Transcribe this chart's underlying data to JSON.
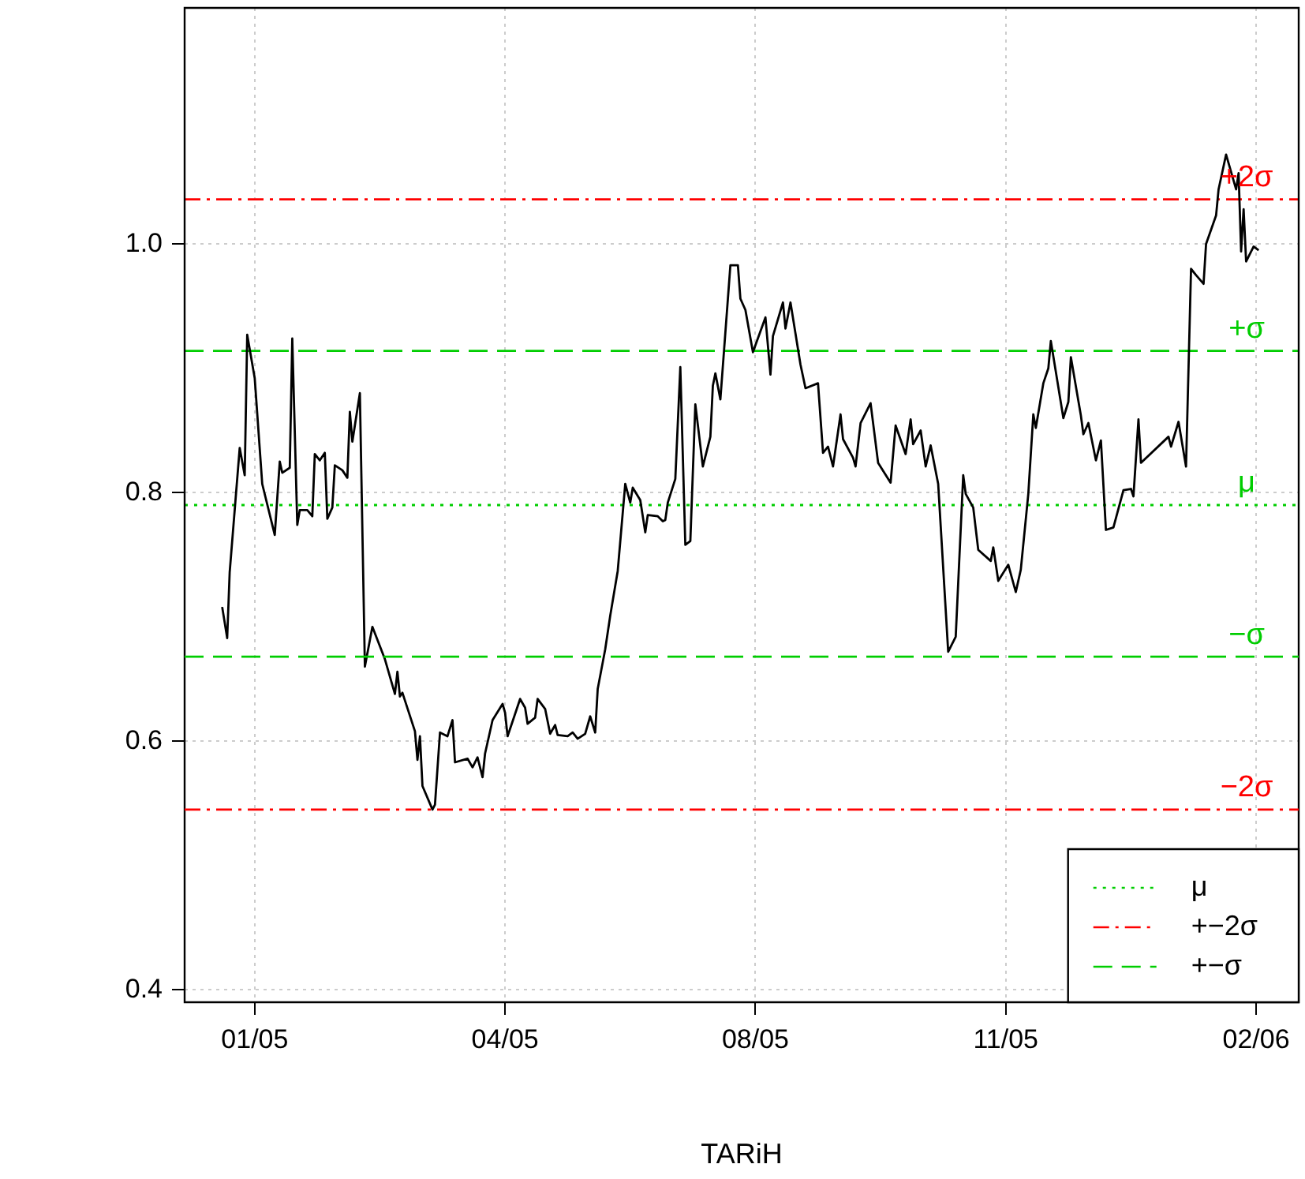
{
  "chart_data": {
    "type": "line",
    "xlabel": "TARiH",
    "xlim": [
      "2004-12-18",
      "2006-03-08"
    ],
    "ylim": [
      0.39,
      1.19
    ],
    "xticks": [
      {
        "value": "2005-01-15",
        "label": "01/05"
      },
      {
        "value": "2005-04-25",
        "label": "04/05"
      },
      {
        "value": "2005-08-03",
        "label": "08/05"
      },
      {
        "value": "2005-11-11",
        "label": "11/05"
      },
      {
        "value": "2006-02-19",
        "label": "02/06"
      }
    ],
    "yticks": [
      0.4,
      0.6,
      0.8,
      {
        "value": 1.0,
        "label": "1.0"
      }
    ],
    "grid": true,
    "legend": "bottom right",
    "marker": "none",
    "series": [
      {
        "color": "#000000",
        "line_style": "solid",
        "x": [
          "2005-01-02",
          "2005-01-04",
          "2005-01-05",
          "2005-01-09",
          "2005-01-11",
          "2005-01-12",
          "2005-01-15",
          "2005-01-18",
          "2005-01-23",
          "2005-01-25",
          "2005-01-26",
          "2005-01-29",
          "2005-01-30",
          "2005-02-01",
          "2005-02-02",
          "2005-02-05",
          "2005-02-07",
          "2005-02-08",
          "2005-02-10",
          "2005-02-12",
          "2005-02-13",
          "2005-02-15",
          "2005-02-16",
          "2005-02-19",
          "2005-02-21",
          "2005-02-22",
          "2005-02-23",
          "2005-02-26",
          "2005-02-28",
          "2005-03-03",
          "2005-03-08",
          "2005-03-12",
          "2005-03-13",
          "2005-03-14",
          "2005-03-15",
          "2005-03-20",
          "2005-03-21",
          "2005-03-22",
          "2005-03-23",
          "2005-03-27",
          "2005-03-28",
          "2005-03-30",
          "2005-04-02",
          "2005-04-04",
          "2005-04-05",
          "2005-04-10",
          "2005-04-12",
          "2005-04-14",
          "2005-04-16",
          "2005-04-17",
          "2005-04-20",
          "2005-04-24",
          "2005-04-25",
          "2005-04-26",
          "2005-05-01",
          "2005-05-03",
          "2005-05-04",
          "2005-05-07",
          "2005-05-08",
          "2005-05-11",
          "2005-05-13",
          "2005-05-15",
          "2005-05-16",
          "2005-05-20",
          "2005-05-22",
          "2005-05-24",
          "2005-05-27",
          "2005-05-29",
          "2005-05-31",
          "2005-06-01",
          "2005-06-04",
          "2005-06-06",
          "2005-06-09",
          "2005-06-12",
          "2005-06-14",
          "2005-06-15",
          "2005-06-18",
          "2005-06-20",
          "2005-06-21",
          "2005-06-25",
          "2005-06-27",
          "2005-06-28",
          "2005-06-29",
          "2005-07-02",
          "2005-07-04",
          "2005-07-06",
          "2005-07-08",
          "2005-07-10",
          "2005-07-13",
          "2005-07-16",
          "2005-07-17",
          "2005-07-18",
          "2005-07-20",
          "2005-07-23",
          "2005-07-24",
          "2005-07-27",
          "2005-07-28",
          "2005-07-30",
          "2005-08-02",
          "2005-08-07",
          "2005-08-09",
          "2005-08-10",
          "2005-08-14",
          "2005-08-15",
          "2005-08-17",
          "2005-08-21",
          "2005-08-23",
          "2005-08-28",
          "2005-08-30",
          "2005-09-01",
          "2005-09-03",
          "2005-09-06",
          "2005-09-07",
          "2005-09-11",
          "2005-09-12",
          "2005-09-14",
          "2005-09-18",
          "2005-09-21",
          "2005-09-26",
          "2005-09-28",
          "2005-10-02",
          "2005-10-04",
          "2005-10-05",
          "2005-10-08",
          "2005-10-10",
          "2005-10-12",
          "2005-10-15",
          "2005-10-19",
          "2005-10-22",
          "2005-10-25",
          "2005-10-26",
          "2005-10-29",
          "2005-10-31",
          "2005-11-05",
          "2005-11-06",
          "2005-11-08",
          "2005-11-12",
          "2005-11-15",
          "2005-11-17",
          "2005-11-20",
          "2005-11-22",
          "2005-11-23",
          "2005-11-26",
          "2005-11-28",
          "2005-11-29",
          "2005-12-04",
          "2005-12-06",
          "2005-12-07",
          "2005-12-11",
          "2005-12-12",
          "2005-12-14",
          "2005-12-17",
          "2005-12-19",
          "2005-12-21",
          "2005-12-24",
          "2005-12-28",
          "2005-12-31",
          "2006-01-01",
          "2006-01-03",
          "2006-01-04",
          "2006-01-15",
          "2006-01-16",
          "2006-01-19",
          "2006-01-22",
          "2006-01-24",
          "2006-01-26",
          "2006-01-29",
          "2006-01-30",
          "2006-02-03",
          "2006-02-04",
          "2006-02-07",
          "2006-02-11",
          "2006-02-12",
          "2006-02-13",
          "2006-02-14",
          "2006-02-15",
          "2006-02-18",
          "2006-02-20"
        ],
        "values": [
          0.708,
          0.683,
          0.736,
          0.836,
          0.814,
          0.927,
          0.892,
          0.807,
          0.766,
          0.825,
          0.816,
          0.82,
          0.924,
          0.774,
          0.786,
          0.786,
          0.781,
          0.831,
          0.826,
          0.832,
          0.779,
          0.788,
          0.822,
          0.818,
          0.812,
          0.865,
          0.841,
          0.88,
          0.66,
          0.692,
          0.666,
          0.638,
          0.656,
          0.636,
          0.639,
          0.608,
          0.585,
          0.604,
          0.564,
          0.545,
          0.549,
          0.607,
          0.604,
          0.617,
          0.583,
          0.586,
          0.579,
          0.587,
          0.571,
          0.59,
          0.617,
          0.63,
          0.623,
          0.604,
          0.634,
          0.627,
          0.614,
          0.619,
          0.634,
          0.626,
          0.606,
          0.613,
          0.605,
          0.604,
          0.607,
          0.602,
          0.606,
          0.62,
          0.607,
          0.642,
          0.674,
          0.701,
          0.737,
          0.807,
          0.792,
          0.804,
          0.794,
          0.768,
          0.782,
          0.781,
          0.777,
          0.778,
          0.792,
          0.811,
          0.901,
          0.758,
          0.761,
          0.871,
          0.821,
          0.845,
          0.886,
          0.896,
          0.875,
          0.956,
          0.983,
          0.983,
          0.956,
          0.947,
          0.913,
          0.941,
          0.895,
          0.926,
          0.953,
          0.932,
          0.953,
          0.903,
          0.884,
          0.888,
          0.832,
          0.837,
          0.821,
          0.863,
          0.843,
          0.828,
          0.821,
          0.856,
          0.872,
          0.824,
          0.808,
          0.854,
          0.831,
          0.859,
          0.839,
          0.85,
          0.821,
          0.838,
          0.807,
          0.672,
          0.684,
          0.814,
          0.799,
          0.788,
          0.754,
          0.745,
          0.756,
          0.729,
          0.742,
          0.72,
          0.738,
          0.799,
          0.863,
          0.852,
          0.888,
          0.9,
          0.922,
          0.86,
          0.873,
          0.909,
          0.862,
          0.847,
          0.856,
          0.826,
          0.842,
          0.77,
          0.772,
          0.802,
          0.803,
          0.797,
          0.859,
          0.824,
          0.845,
          0.837,
          0.857,
          0.821,
          0.98,
          0.975,
          0.968,
          1.0,
          1.023,
          1.044,
          1.072,
          1.044,
          1.057,
          0.994,
          1.028,
          0.986,
          0.998,
          0.995
        ]
      },
      {
        "name": "μ",
        "color": "#00cd00",
        "line_style": "dotted",
        "x": [
          "2004-12-18",
          "2006-03-08"
        ],
        "values": [
          0.79,
          0.79
        ]
      },
      {
        "name": "+−2σ",
        "color": "#ff0000",
        "line_style": "dashdot",
        "x": [
          "2004-12-18",
          "2006-03-08"
        ],
        "values": [
          1.036,
          1.036
        ]
      },
      {
        "name": "+−σ",
        "color": "#00cd00",
        "line_style": "dashed",
        "x": [
          "2004-12-18",
          "2006-03-08"
        ],
        "values": [
          0.914,
          0.914
        ]
      }
    ],
    "ref_lines": [
      {
        "axis": "y",
        "value": 0.668,
        "label": "−σ",
        "color": "#00cd00",
        "line_style": "dashed"
      },
      {
        "axis": "y",
        "value": 0.545,
        "label": "−2σ",
        "color": "#ff0000",
        "line_style": "dashdot"
      }
    ],
    "annotations": [
      "+2σ",
      "+σ",
      "μ"
    ]
  }
}
